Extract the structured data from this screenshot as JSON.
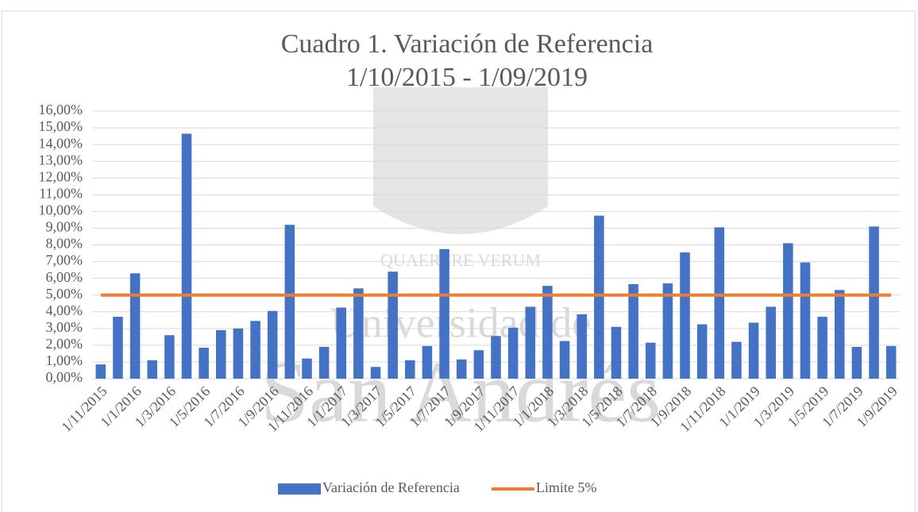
{
  "chart_data": {
    "type": "bar",
    "title": "Cuadro 1. Variación de Referencia",
    "subtitle": "1/10/2015 - 1/09/2019",
    "watermark": [
      "QUAERERE VERUM",
      "Universidad de",
      "San Andrés"
    ],
    "categories": [
      "1/11/2015",
      null,
      "1/1/2016",
      null,
      "1/3/2016",
      null,
      "1/5/2016",
      null,
      "1/7/2016",
      null,
      "1/9/2016",
      null,
      "1/11/2016",
      null,
      "1/1/2017",
      null,
      "1/3/2017",
      null,
      "1/5/2017",
      null,
      "1/7/2017",
      null,
      "1/9/2017",
      null,
      "1/11/2017",
      null,
      "1/1/2018",
      null,
      "1/3/2018",
      null,
      "1/5/2018",
      null,
      "1/7/2018",
      null,
      "1/9/2018",
      null,
      "1/11/2018",
      null,
      "1/1/2019",
      null,
      "1/3/2019",
      null,
      "1/5/2019",
      null,
      "1/7/2019",
      null,
      "1/9/2019"
    ],
    "series": [
      {
        "name": "Variación de Referencia",
        "type": "bar",
        "color": "#4472c4",
        "values": [
          0.85,
          3.7,
          6.3,
          1.1,
          2.6,
          14.65,
          1.85,
          2.9,
          3.0,
          3.45,
          4.05,
          9.2,
          1.2,
          1.9,
          4.25,
          5.4,
          0.7,
          6.4,
          1.1,
          1.95,
          7.75,
          1.15,
          1.7,
          2.55,
          3.05,
          4.3,
          5.55,
          2.25,
          3.85,
          9.75,
          3.1,
          5.65,
          2.15,
          5.7,
          7.55,
          3.25,
          9.05,
          2.2,
          3.35,
          4.3,
          8.1,
          6.95,
          3.7,
          5.3,
          1.9,
          9.1,
          1.95
        ]
      },
      {
        "name": "Limite 5%",
        "type": "line",
        "color": "#ed7d31",
        "values": [
          5,
          5,
          5,
          5,
          5,
          5,
          5,
          5,
          5,
          5,
          5,
          5,
          5,
          5,
          5,
          5,
          5,
          5,
          5,
          5,
          5,
          5,
          5,
          5,
          5,
          5,
          5,
          5,
          5,
          5,
          5,
          5,
          5,
          5,
          5,
          5,
          5,
          5,
          5,
          5,
          5,
          5,
          5,
          5,
          5,
          5,
          5
        ]
      }
    ],
    "ylim": [
      0,
      16
    ],
    "yticks": [
      {
        "value": 0,
        "label": "0,00%"
      },
      {
        "value": 1,
        "label": "1,00%"
      },
      {
        "value": 2,
        "label": "2,00%"
      },
      {
        "value": 3,
        "label": "3,00%"
      },
      {
        "value": 4,
        "label": "4,00%"
      },
      {
        "value": 5,
        "label": "5,00%"
      },
      {
        "value": 6,
        "label": "6,00%"
      },
      {
        "value": 7,
        "label": "7,00%"
      },
      {
        "value": 8,
        "label": "8,00%"
      },
      {
        "value": 9,
        "label": "9,00%"
      },
      {
        "value": 10,
        "label": "10,00%"
      },
      {
        "value": 11,
        "label": "11,00%"
      },
      {
        "value": 12,
        "label": "12,00%"
      },
      {
        "value": 13,
        "label": "13,00%"
      },
      {
        "value": 14,
        "label": "14,00%"
      },
      {
        "value": 15,
        "label": "15,00%"
      },
      {
        "value": 16,
        "label": "16,00%"
      }
    ],
    "grid": true,
    "legend": "bottom"
  }
}
